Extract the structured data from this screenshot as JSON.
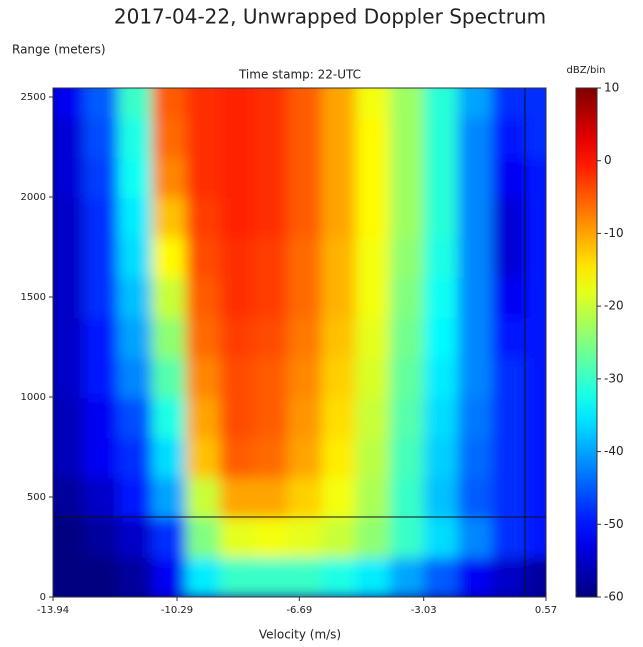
{
  "chart_data": {
    "type": "heatmap",
    "title": "2017-04-22, Unwrapped Doppler Spectrum",
    "subtitle": "Time stamp: 22-UTC",
    "y_label": "Range (meters)",
    "x_label": "Velocity (m/s)",
    "colorbar_label": "dBZ/bin",
    "colormap": "jet",
    "x": [
      -13.5,
      -12.5,
      -11.5,
      -10.5,
      -9.5,
      -8.5,
      -7.5,
      -6.5,
      -5.5,
      -4.5,
      -3.5,
      -2.5,
      -1.5,
      -0.5,
      0.5
    ],
    "y": [
      100,
      300,
      500,
      700,
      900,
      1100,
      1300,
      1500,
      1700,
      1900,
      2100,
      2300,
      2500
    ],
    "z": [
      [
        -60,
        -60,
        -58,
        -52,
        -35,
        -30,
        -30,
        -30,
        -32,
        -35,
        -40,
        -45,
        -52,
        -55,
        -58
      ],
      [
        -60,
        -58,
        -55,
        -48,
        -25,
        -18,
        -17,
        -18,
        -20,
        -24,
        -30,
        -36,
        -42,
        -48,
        -50
      ],
      [
        -58,
        -55,
        -50,
        -40,
        -20,
        -10,
        -10,
        -13,
        -17,
        -22,
        -30,
        -38,
        -45,
        -48,
        -50
      ],
      [
        -56,
        -52,
        -48,
        -36,
        -12,
        -5,
        -6,
        -10,
        -15,
        -21,
        -29,
        -37,
        -44,
        -48,
        -50
      ],
      [
        -56,
        -52,
        -46,
        -32,
        -10,
        -4,
        -5,
        -9,
        -14,
        -20,
        -28,
        -36,
        -43,
        -48,
        -50
      ],
      [
        -55,
        -50,
        -42,
        -28,
        -8,
        -4,
        -5,
        -8,
        -13,
        -19,
        -27,
        -35,
        -42,
        -48,
        -50
      ],
      [
        -55,
        -50,
        -40,
        -24,
        -6,
        -3,
        -4,
        -7,
        -12,
        -18,
        -26,
        -34,
        -42,
        -50,
        -50
      ],
      [
        -55,
        -48,
        -38,
        -20,
        -5,
        -2,
        -3,
        -6,
        -11,
        -17,
        -25,
        -33,
        -42,
        -52,
        -50
      ],
      [
        -55,
        -48,
        -36,
        -16,
        -4,
        -2,
        -3,
        -6,
        -11,
        -17,
        -24,
        -32,
        -42,
        -54,
        -50
      ],
      [
        -55,
        -48,
        -35,
        -12,
        -3,
        -1,
        -2,
        -5,
        -10,
        -16,
        -23,
        -31,
        -42,
        -54,
        -50
      ],
      [
        -54,
        -47,
        -33,
        -8,
        -2,
        -1,
        -2,
        -5,
        -10,
        -16,
        -23,
        -31,
        -42,
        -52,
        -50
      ],
      [
        -54,
        -46,
        -32,
        -6,
        -2,
        -1,
        -2,
        -5,
        -10,
        -16,
        -23,
        -31,
        -42,
        -50,
        -48
      ],
      [
        -52,
        -45,
        -30,
        -5,
        -2,
        -1,
        -2,
        -5,
        -10,
        -17,
        -23,
        -31,
        -40,
        -48,
        -48
      ]
    ],
    "xlim": [
      -13.94,
      0.57
    ],
    "xticks": [
      -13.94,
      -10.29,
      -6.69,
      -3.03,
      0.57
    ],
    "ylim": [
      0,
      2545
    ],
    "yticks": [
      0,
      500,
      1000,
      1500,
      2000,
      2500
    ],
    "zlim": [
      -60,
      10
    ],
    "zticks": [
      10,
      0,
      -10,
      -20,
      -30,
      -40,
      -50,
      -60
    ],
    "hlines": [
      400
    ],
    "vlines": [
      -0.05
    ]
  }
}
